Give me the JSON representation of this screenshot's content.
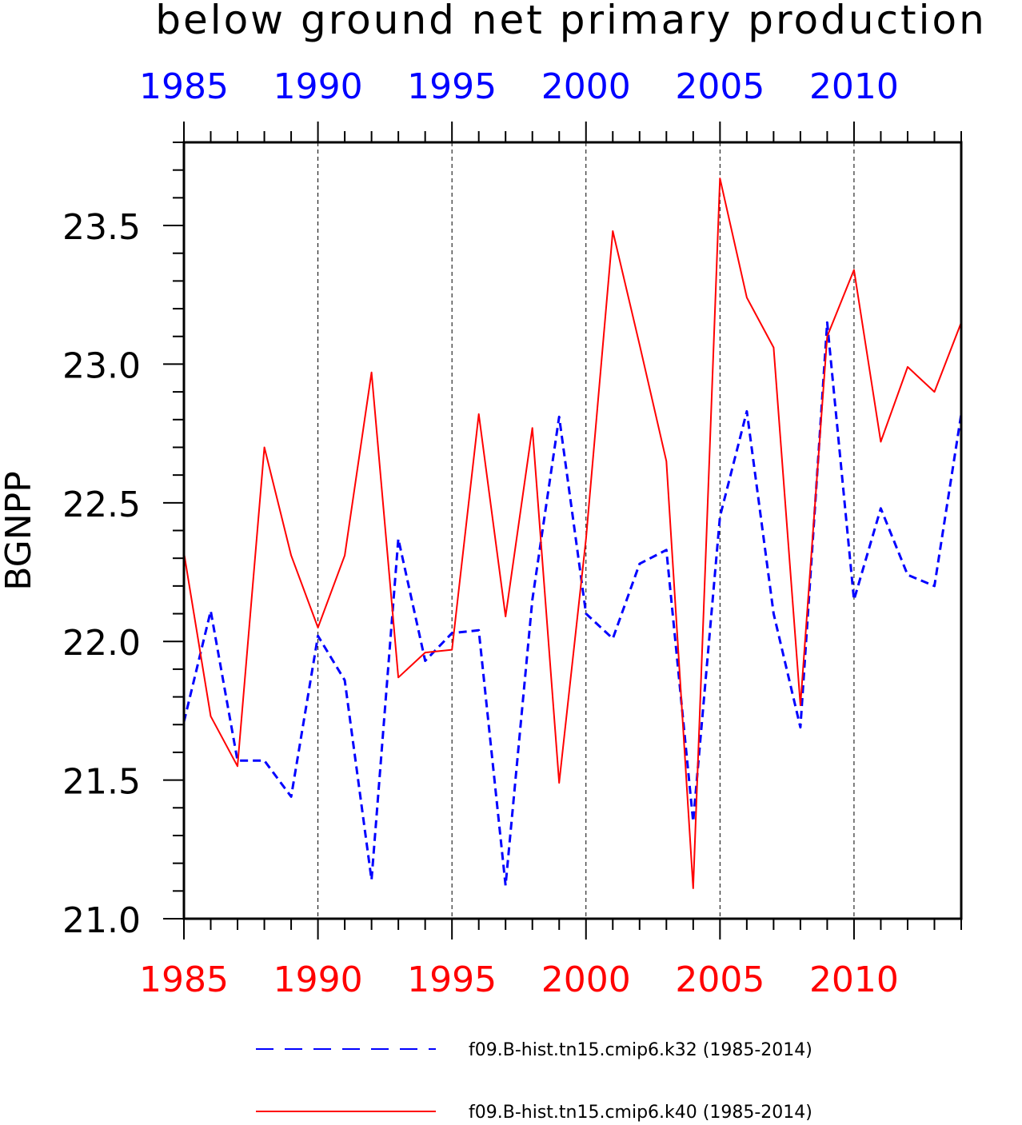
{
  "chart_data": {
    "type": "line",
    "title": "below ground net primary production",
    "ylabel": "BGNPP",
    "xlabel": "",
    "xlim": [
      1985,
      2014
    ],
    "ylim": [
      21.0,
      23.8
    ],
    "yticks": [
      "21.0",
      "21.5",
      "22.0",
      "22.5",
      "23.0",
      "23.5"
    ],
    "ytick_values": [
      21.0,
      21.5,
      22.0,
      22.5,
      23.0,
      23.5
    ],
    "xticks": [
      "1985",
      "1990",
      "1995",
      "2000",
      "2005",
      "2010"
    ],
    "xtick_values": [
      1985,
      1990,
      1995,
      2000,
      2005,
      2010
    ],
    "top_axis_color": "#0000ff",
    "bottom_axis_color": "#ff0000",
    "grid": "vertical dashed at major x ticks",
    "legend_position": "bottom",
    "x": [
      1985,
      1986,
      1987,
      1988,
      1989,
      1990,
      1991,
      1992,
      1993,
      1994,
      1995,
      1996,
      1997,
      1998,
      1999,
      2000,
      2001,
      2002,
      2003,
      2004,
      2005,
      2006,
      2007,
      2008,
      2009,
      2010,
      2011,
      2012,
      2013,
      2014
    ],
    "series": [
      {
        "name": "f09.B-hist.tn15.cmip6.k32 (1985-2014)",
        "color": "#0000ff",
        "style": "dashed",
        "values": [
          21.71,
          22.11,
          21.57,
          21.57,
          21.44,
          22.02,
          21.86,
          21.14,
          22.37,
          21.93,
          22.03,
          22.04,
          21.12,
          22.15,
          22.81,
          22.1,
          22.01,
          22.28,
          22.33,
          21.35,
          22.45,
          22.83,
          22.1,
          21.69,
          23.15,
          22.15,
          22.48,
          22.24,
          22.2,
          22.82
        ]
      },
      {
        "name": "f09.B-hist.tn15.cmip6.k40 (1985-2014)",
        "color": "#ff0000",
        "style": "solid",
        "values": [
          22.32,
          21.73,
          21.55,
          22.7,
          22.31,
          22.05,
          22.31,
          22.97,
          21.87,
          21.96,
          21.97,
          22.82,
          22.09,
          22.77,
          21.49,
          22.37,
          23.48,
          23.07,
          22.65,
          21.11,
          23.67,
          23.24,
          23.06,
          21.77,
          23.1,
          23.34,
          22.72,
          22.99,
          22.9,
          23.15
        ]
      }
    ]
  }
}
